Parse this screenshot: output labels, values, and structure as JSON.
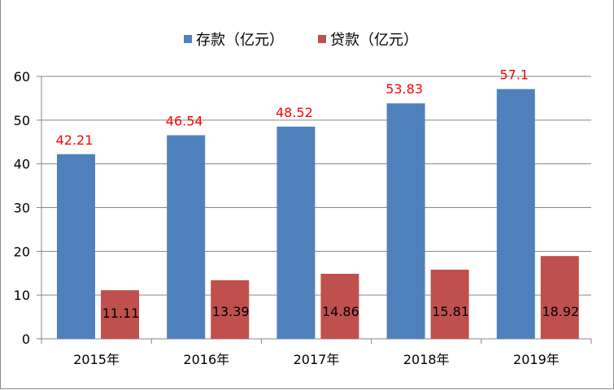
{
  "chart_data": {
    "type": "bar",
    "categories": [
      "2015年",
      "2016年",
      "2017年",
      "2018年",
      "2019年"
    ],
    "series": [
      {
        "name": "存款（亿元）",
        "color": "#4F81BD",
        "values": [
          42.21,
          46.54,
          48.52,
          53.83,
          57.1
        ]
      },
      {
        "name": "贷款（亿元）",
        "color": "#C0504D",
        "values": [
          11.11,
          13.39,
          14.86,
          15.81,
          18.92
        ]
      }
    ],
    "value_label_colors": [
      "#FF0000",
      "#000000"
    ],
    "ylim": [
      0,
      60
    ],
    "yticks": [
      0,
      10,
      20,
      30,
      40,
      50,
      60
    ],
    "grid": true,
    "legend_position": "top",
    "title": "",
    "xlabel": "",
    "ylabel": ""
  }
}
